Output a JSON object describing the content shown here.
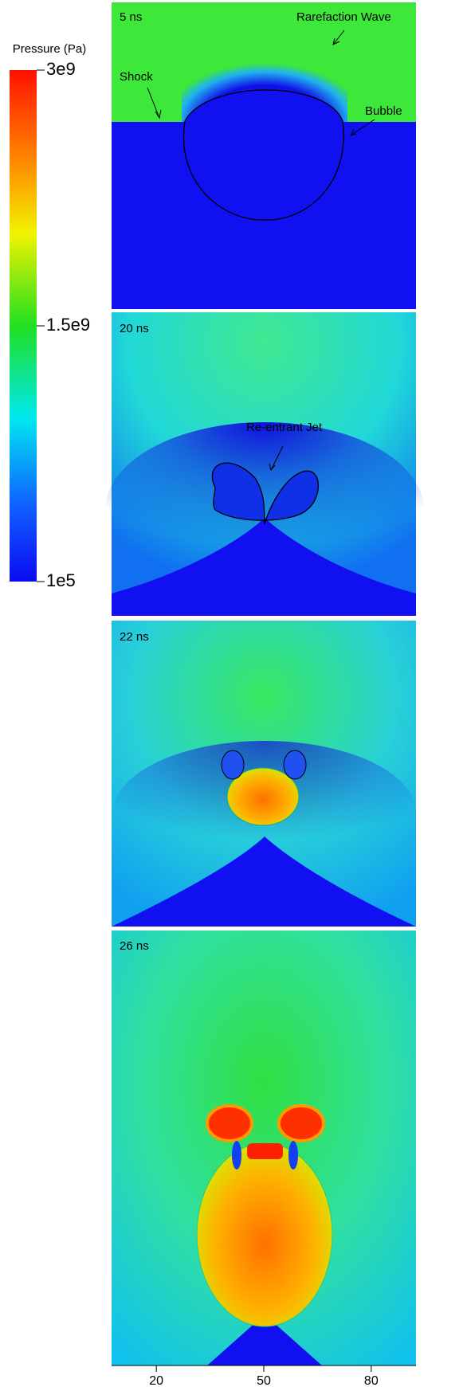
{
  "colorbar": {
    "title": "Pressure (Pa)",
    "clim": [
      100000,
      3000000000
    ],
    "ticks": [
      {
        "value": 3000000000,
        "label": "3e9"
      },
      {
        "value": 1500000000,
        "label": "1.5e9"
      },
      {
        "value": 100000,
        "label": "1e5"
      }
    ]
  },
  "panels": [
    {
      "time": "5 ns",
      "annotations": [
        "Rarefaction Wave",
        "Shock",
        "Bubble"
      ]
    },
    {
      "time": "20 ns",
      "annotations": [
        "Re-entrant Jet"
      ]
    },
    {
      "time": "22 ns"
    },
    {
      "time": "26 ns"
    }
  ],
  "x_axis": {
    "xlim": [
      7.5,
      92.5
    ],
    "xticks": [
      20,
      50,
      80
    ]
  }
}
